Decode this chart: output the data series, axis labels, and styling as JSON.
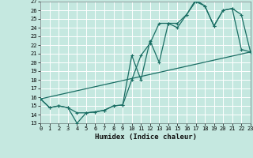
{
  "title": "",
  "xlabel": "Humidex (Indice chaleur)",
  "bg_color": "#c5e8e0",
  "grid_color": "#ffffff",
  "line_color": "#1a6e64",
  "ylim": [
    13,
    27
  ],
  "xlim": [
    0,
    23
  ],
  "yticks": [
    13,
    14,
    15,
    16,
    17,
    18,
    19,
    20,
    21,
    22,
    23,
    24,
    25,
    26,
    27
  ],
  "xticks": [
    0,
    1,
    2,
    3,
    4,
    5,
    6,
    7,
    8,
    9,
    10,
    11,
    12,
    13,
    14,
    15,
    16,
    17,
    18,
    19,
    20,
    21,
    22,
    23
  ],
  "line1_x": [
    0,
    1,
    2,
    3,
    4,
    5,
    6,
    7,
    8,
    9,
    10,
    11,
    12,
    13,
    14,
    15,
    16,
    17,
    18,
    19,
    20,
    21,
    22,
    23
  ],
  "line1_y": [
    15.8,
    14.8,
    15.0,
    14.8,
    14.2,
    14.2,
    14.3,
    14.5,
    15.0,
    15.1,
    18.0,
    20.8,
    22.2,
    24.5,
    24.5,
    24.0,
    25.5,
    27.2,
    26.5,
    24.2,
    26.0,
    26.2,
    21.5,
    21.2
  ],
  "line2_x": [
    0,
    1,
    2,
    3,
    4,
    5,
    6,
    7,
    8,
    9,
    10,
    11,
    12,
    13,
    14,
    15,
    16,
    17,
    18,
    19,
    20,
    21,
    22,
    23
  ],
  "line2_y": [
    15.8,
    14.8,
    15.0,
    14.8,
    13.0,
    14.2,
    14.3,
    14.5,
    15.0,
    15.1,
    20.8,
    18.0,
    22.5,
    20.0,
    24.5,
    24.5,
    25.5,
    27.0,
    26.5,
    24.2,
    26.0,
    26.2,
    25.5,
    21.2
  ],
  "line3_x": [
    0,
    23
  ],
  "line3_y": [
    15.8,
    21.2
  ],
  "marker_size": 2.5,
  "linewidth": 0.9
}
